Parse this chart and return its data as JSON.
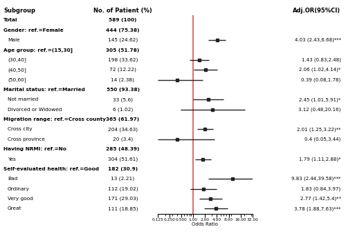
{
  "rows": [
    {
      "label": "Total",
      "n": "589 (100)",
      "bold": true,
      "or": null,
      "lo": null,
      "hi": null,
      "or_text": null
    },
    {
      "label": "Gender: ref.=Female",
      "n": "444 (75.38)",
      "bold": true,
      "or": null,
      "lo": null,
      "hi": null,
      "or_text": null
    },
    {
      "label": "Male",
      "n": "145 (24.62)",
      "bold": false,
      "or": 4.03,
      "lo": 2.43,
      "hi": 6.68,
      "or_text": "4.03 (2.43,6.68)***"
    },
    {
      "label": "Age group: ref.=(15,30]",
      "n": "305 (51.78)",
      "bold": true,
      "or": null,
      "lo": null,
      "hi": null,
      "or_text": null
    },
    {
      "label": "(30,40]",
      "n": "198 (33.62)",
      "bold": false,
      "or": 1.43,
      "lo": 0.83,
      "hi": 2.48,
      "or_text": "1.43 (0.83,2.48)"
    },
    {
      "label": "(40,50]",
      "n": "72 (12.22)",
      "bold": false,
      "or": 2.06,
      "lo": 1.02,
      "hi": 4.14,
      "or_text": "2.06 (1.02,4.14)*"
    },
    {
      "label": "(50,60]",
      "n": "14 (2.38)",
      "bold": false,
      "or": 0.39,
      "lo": 0.08,
      "hi": 1.78,
      "or_text": "0.39 (0.08,1.78)"
    },
    {
      "label": "Marital status: ref.=Married",
      "n": "550 (93.38)",
      "bold": true,
      "or": null,
      "lo": null,
      "hi": null,
      "or_text": null
    },
    {
      "label": "Not married",
      "n": "33 (5.6)",
      "bold": false,
      "or": 2.45,
      "lo": 1.01,
      "hi": 5.91,
      "or_text": "2.45 (1.01,5.91)*"
    },
    {
      "label": "Divorced or Widowed",
      "n": "6 (1.02)",
      "bold": false,
      "or": 3.12,
      "lo": 0.48,
      "hi": 20.16,
      "or_text": "3.12 (0.48,20.16)"
    },
    {
      "label": "Migration range: ref.=Cross county",
      "n": "365 (61.97)",
      "bold": true,
      "or": null,
      "lo": null,
      "hi": null,
      "or_text": null
    },
    {
      "label": "Cross city",
      "n": "204 (34.63)",
      "bold": false,
      "or": 2.01,
      "lo": 1.25,
      "hi": 3.22,
      "or_text": "2.01 (1.25,3.22)**"
    },
    {
      "label": "Cross province",
      "n": "20 (3.4)",
      "bold": false,
      "or": 0.4,
      "lo": 0.05,
      "hi": 3.44,
      "or_text": "0.4 (0.05,3.44)"
    },
    {
      "label": "Having NRMI: ref.=No",
      "n": "285 (48.39)",
      "bold": true,
      "or": null,
      "lo": null,
      "hi": null,
      "or_text": null
    },
    {
      "label": "Yes",
      "n": "304 (51.61)",
      "bold": false,
      "or": 1.79,
      "lo": 1.11,
      "hi": 2.88,
      "or_text": "1.79 (1.11,2.88)*"
    },
    {
      "label": "Self-evaluated health: ref.=Good",
      "n": "182 (30.9)",
      "bold": true,
      "or": null,
      "lo": null,
      "hi": null,
      "or_text": null
    },
    {
      "label": "Bad",
      "n": "13 (2.21)",
      "bold": false,
      "or": 9.83,
      "lo": 2.44,
      "hi": 39.58,
      "or_text": "9.83 (2.44,39.58)***"
    },
    {
      "label": "Ordinary",
      "n": "112 (19.02)",
      "bold": false,
      "or": 1.83,
      "lo": 0.84,
      "hi": 3.97,
      "or_text": "1.83 (0.84,3.97)"
    },
    {
      "label": "Very good",
      "n": "171 (29.03)",
      "bold": false,
      "or": 2.77,
      "lo": 1.42,
      "hi": 5.4,
      "or_text": "2.77 (1.42,5.4)**"
    },
    {
      "label": "Great",
      "n": "111 (18.85)",
      "bold": false,
      "or": 3.78,
      "lo": 1.88,
      "hi": 7.63,
      "or_text": "3.78 (1.88,7.63)***"
    }
  ],
  "xmin": 0.125,
  "xmax": 32.0,
  "ref_line": 1.0,
  "xlabel": "Odds Ratio",
  "xticks": [
    0.125,
    0.25,
    0.5,
    1.0,
    2.0,
    4.0,
    8.0,
    16.0,
    32.0
  ],
  "xtick_labels": [
    "0.125",
    "0.250",
    "0.500",
    "1.00",
    "2.00",
    "4.00",
    "8.00",
    "16.00",
    "32.00"
  ],
  "col1_header": "Subgroup",
  "col2_header": "No. of Patient (%)",
  "col3_header": "Adj.OR(95%CI)",
  "marker_color": "#222222",
  "ci_color": "#222222",
  "ref_color": "#d94f4f",
  "fig_bg": "#ffffff"
}
